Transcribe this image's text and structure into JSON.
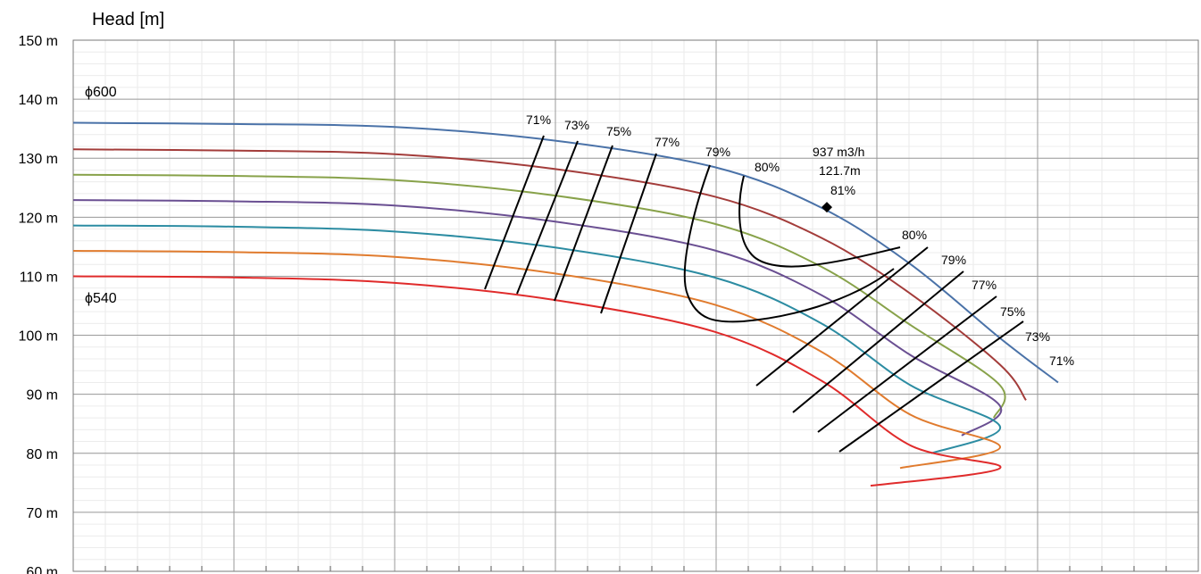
{
  "chart_data": {
    "type": "line",
    "title": "",
    "ylabel": "Head [m]",
    "xlabel": "",
    "ylim": [
      60,
      150
    ],
    "y_ticks": [
      60,
      70,
      80,
      90,
      100,
      110,
      120,
      130,
      140,
      150
    ],
    "y_tick_labels": [
      "60 m",
      "70 m",
      "80 m",
      "90 m",
      "100 m",
      "110 m",
      "120 m",
      "130 m",
      "140 m",
      "150 m"
    ],
    "x_major_gridlines": 7,
    "grid": true,
    "colors": [
      "#4a72a8",
      "#a33c3a",
      "#88a24a",
      "#6a4f92",
      "#2c8ca2",
      "#e07b2e",
      "#e02b2b"
    ],
    "series": [
      {
        "values": [
          136.0,
          135.8,
          135.3,
          133.0,
          128.5,
          121.6,
          112.0,
          99.5,
          92.0
        ]
      },
      {
        "values": [
          131.5,
          131.3,
          130.7,
          128.2,
          123.5,
          116.5,
          107.0,
          95.0,
          89.0
        ]
      },
      {
        "values": [
          127.2,
          127.0,
          126.3,
          123.7,
          118.9,
          111.6,
          101.7,
          91.5,
          86.0
        ]
      },
      {
        "values": [
          122.9,
          122.7,
          122.0,
          119.3,
          114.4,
          106.8,
          96.6,
          88.0,
          83.0
        ]
      },
      {
        "values": [
          118.6,
          118.4,
          117.6,
          114.9,
          109.8,
          102.0,
          91.5,
          84.5,
          80.0
        ]
      },
      {
        "values": [
          114.3,
          114.1,
          113.3,
          110.5,
          105.2,
          97.2,
          86.5,
          81.0,
          77.5
        ]
      },
      {
        "values": [
          110.0,
          109.8,
          108.9,
          106.0,
          100.6,
          92.3,
          81.3,
          77.5,
          74.5
        ]
      }
    ],
    "diameter_labels": [
      {
        "text": "ϕ600",
        "y": 140.5
      },
      {
        "text": "ϕ540",
        "y": 105.5
      }
    ],
    "efficiency_labels": {
      "left": [
        "71%",
        "73%",
        "75%",
        "77%",
        "79%",
        "80%"
      ],
      "right": [
        "80%",
        "79%",
        "77%",
        "75%",
        "73%",
        "71%"
      ]
    },
    "bep": {
      "flow": "937 m3/h",
      "head_label": "121.7m",
      "efficiency": "81%",
      "head": 121.7
    }
  }
}
